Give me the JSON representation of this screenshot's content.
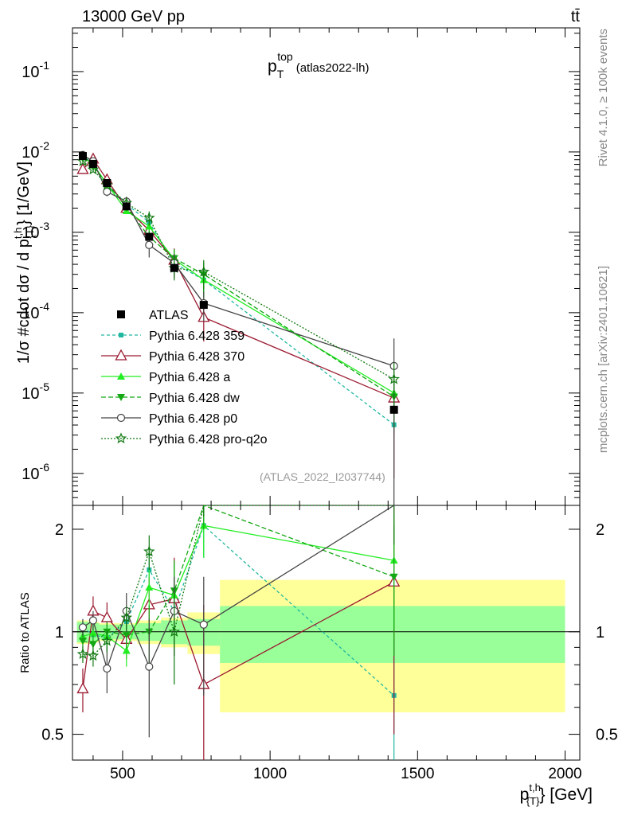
{
  "header": {
    "left": "13000 GeV pp",
    "right": "tt̄"
  },
  "side_text": {
    "rivet": "Rivet 4.1.0, ≥ 100k events",
    "mcplots": "mcplots.cern.ch [arXiv:2401.10621]"
  },
  "chart_data": {
    "type": "scatter",
    "title": {
      "main": "p",
      "sup": "top",
      "sub": "T",
      "suffix": "(atlas2022-lh)"
    },
    "analysis_tag": "(ATLAS_2022_I2037744)",
    "ylabel": "1/σ #cdot dσ / d p{T}t,h} [1/GeV]",
    "ylabel_parts": {
      "pre": "1/σ #cdot dσ / d p",
      "sup": "t,h",
      "sub": "{T}",
      "post": "} [1/GeV]"
    },
    "xlabel_parts": {
      "base": "p",
      "sup": "t,h",
      "sub": "{T}",
      "post": "} [GeV]"
    },
    "ratio_ylabel": "Ratio to ATLAS",
    "x_range": [
      330,
      2050
    ],
    "y_range": [
      4e-07,
      0.35
    ],
    "y_scale": "log",
    "ratio_range": [
      0.42,
      2.35
    ],
    "x_ticks": [
      "500",
      "1000",
      "1500",
      "2000"
    ],
    "y_ticks": [
      "10^-6",
      "10^-5",
      "10^-4",
      "10^-3",
      "10^-2",
      "10^-1"
    ],
    "ratio_ticks": [
      "0.5",
      "1",
      "2"
    ],
    "legend_placement": "middle-left",
    "x": [
      365,
      400,
      447,
      513,
      590,
      675,
      775,
      1420
    ],
    "bin_edges": [
      345,
      385,
      420,
      475,
      550,
      630,
      720,
      830,
      2000
    ],
    "data": {
      "name": "ATLAS",
      "values": [
        0.0089,
        0.0071,
        0.0041,
        0.0021,
        0.00088,
        0.00036,
        0.000125,
        6.2e-06
      ]
    },
    "band_inner": [
      0.07,
      0.06,
      0.05,
      0.05,
      0.06,
      0.08,
      0.09,
      0.19
    ],
    "band_outer": [
      0.08,
      0.07,
      0.06,
      0.06,
      0.08,
      0.1,
      0.14,
      0.42
    ],
    "series": [
      {
        "name": "Pythia 6.428 359",
        "color": "#20b8a0",
        "marker": "square-small",
        "dash": "4,3",
        "ratio": [
          1.03,
          0.98,
          0.96,
          1.07,
          1.52,
          1.15,
          2.05,
          0.65
        ],
        "err": [
          0.05,
          0.06,
          0.07,
          0.09,
          0.2,
          0.3,
          0.4,
          0.3
        ]
      },
      {
        "name": "Pythia 6.428 370",
        "color": "#9b1a30",
        "marker": "triangle-open",
        "dash": "",
        "ratio": [
          0.68,
          1.15,
          1.1,
          0.95,
          1.2,
          1.25,
          0.7,
          1.4
        ],
        "err": [
          0.1,
          0.12,
          0.12,
          0.12,
          0.25,
          0.4,
          0.5,
          0.9
        ]
      },
      {
        "name": "Pythia 6.428 a",
        "color": "#22ee22",
        "marker": "triangle-filled",
        "dash": "",
        "ratio": [
          0.97,
          0.99,
          0.97,
          0.88,
          1.35,
          1.28,
          2.05,
          1.62
        ],
        "err": [
          0.05,
          0.06,
          0.07,
          0.09,
          0.2,
          0.3,
          0.4,
          0.6
        ]
      },
      {
        "name": "Pythia 6.428 dw",
        "color": "#14a814",
        "marker": "triangle-down-filled",
        "dash": "6,3",
        "ratio": [
          0.94,
          0.92,
          1.0,
          0.98,
          1.0,
          1.32,
          2.4,
          1.45
        ],
        "err": [
          0.05,
          0.06,
          0.07,
          0.09,
          0.2,
          0.3,
          0.4,
          0.6
        ]
      },
      {
        "name": "Pythia 6.428 p0",
        "color": "#444444",
        "marker": "circle-open",
        "dash": "",
        "ratio": [
          1.03,
          1.08,
          0.78,
          1.15,
          0.79,
          1.15,
          1.05,
          3.5
        ],
        "err": [
          0.06,
          0.07,
          0.12,
          0.15,
          0.3,
          0.3,
          0.4,
          1.2
        ]
      },
      {
        "name": "Pythia 6.428 pro-q2o",
        "color": "#127a12",
        "marker": "star-open",
        "dash": "2,2",
        "ratio": [
          0.86,
          0.85,
          0.94,
          1.1,
          1.72,
          1.0,
          2.58,
          2.4
        ],
        "err": [
          0.05,
          0.06,
          0.07,
          0.09,
          0.2,
          0.3,
          0.4,
          0.6
        ]
      }
    ]
  }
}
